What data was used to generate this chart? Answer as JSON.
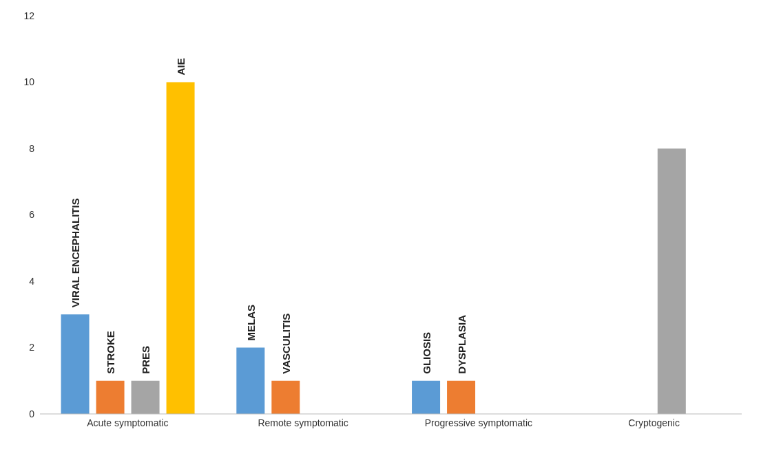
{
  "chart_data": {
    "type": "bar",
    "categories": [
      "Acute symptomatic",
      "Remote symptomatic",
      "Progressive symptomatic",
      "Cryptogenic"
    ],
    "series": [
      {
        "color": "#5b9bd5",
        "values": [
          3,
          2,
          1,
          null
        ],
        "value_labels": [
          "VIRAL ENCEPHALITIS",
          "MELAS",
          "GLIOSIS",
          null
        ]
      },
      {
        "color": "#ed7d31",
        "values": [
          1,
          1,
          1,
          null
        ],
        "value_labels": [
          "STROKE",
          "VASCULITIS",
          "DYSPLASIA",
          null
        ]
      },
      {
        "color": "#a5a5a5",
        "values": [
          1,
          null,
          null,
          8
        ],
        "value_labels": [
          "PRES",
          null,
          null,
          null
        ]
      },
      {
        "color": "#ffc000",
        "values": [
          10,
          null,
          null,
          null
        ],
        "value_labels": [
          "AIE",
          null,
          null,
          null
        ]
      }
    ],
    "ylim": [
      0,
      12
    ],
    "yticks": [
      0,
      2,
      4,
      6,
      8,
      10,
      12
    ],
    "grid": false,
    "legend": false
  }
}
